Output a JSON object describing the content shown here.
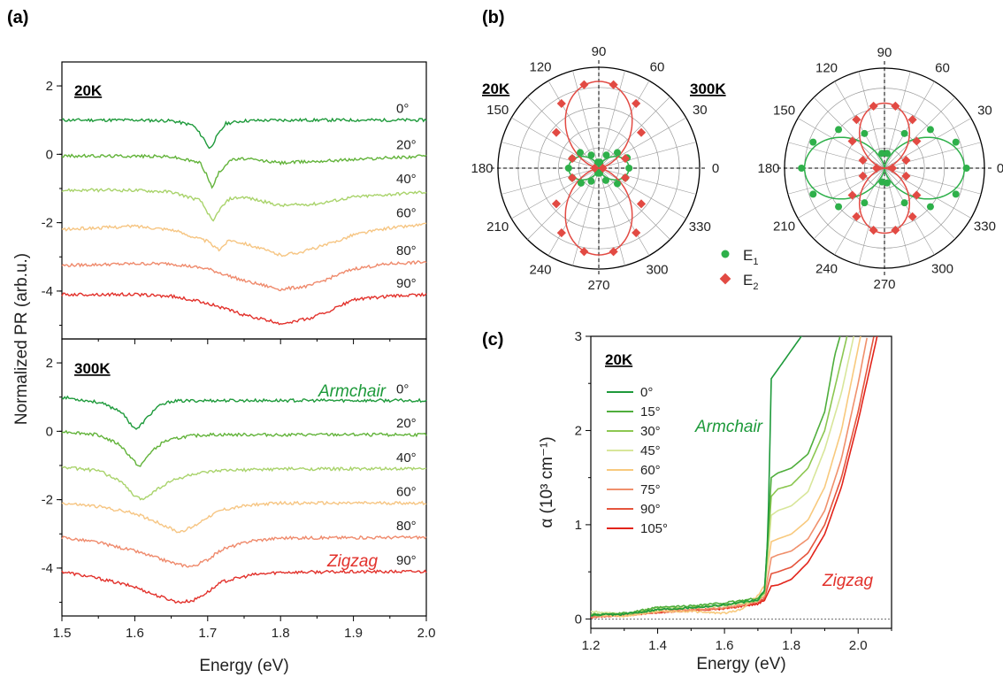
{
  "panels": [
    {
      "id": "a",
      "label": "(a)"
    },
    {
      "id": "b",
      "label": "(b)"
    },
    {
      "id": "c",
      "label": "(c)"
    }
  ],
  "chart_data": [
    {
      "id": "a-top",
      "type": "line",
      "temperature_label": "20K",
      "ylabel": "Normalized PR (arb.u.)",
      "xlabel": "",
      "xlim": [
        1.5,
        2.0
      ],
      "ylim": [
        -5.4,
        2.7
      ],
      "yticks": [
        "2",
        "0",
        "-2",
        "-4"
      ],
      "series": [
        {
          "name": "0°",
          "offset": 1.0,
          "x": [
            1.5,
            1.6,
            1.65,
            1.68,
            1.695,
            1.703,
            1.712,
            1.725,
            1.75,
            1.8,
            1.9,
            2.0
          ],
          "y": [
            0,
            0,
            -0.02,
            -0.15,
            -0.55,
            -0.85,
            -0.5,
            -0.1,
            -0.02,
            0,
            0,
            0
          ],
          "color": "#1e9a3b"
        },
        {
          "name": "20°",
          "offset": -0.05,
          "x": [
            1.5,
            1.6,
            1.65,
            1.69,
            1.7,
            1.706,
            1.715,
            1.73,
            1.75,
            1.8,
            1.9,
            2.0
          ],
          "y": [
            0,
            0,
            -0.02,
            -0.2,
            -0.6,
            -0.95,
            -0.5,
            -0.12,
            -0.08,
            -0.2,
            -0.1,
            0
          ],
          "color": "#62b33a"
        },
        {
          "name": "40°",
          "offset": -1.05,
          "x": [
            1.5,
            1.6,
            1.65,
            1.69,
            1.7,
            1.707,
            1.715,
            1.73,
            1.75,
            1.8,
            1.85,
            1.9,
            2.0
          ],
          "y": [
            0,
            0,
            -0.05,
            -0.3,
            -0.65,
            -0.95,
            -0.6,
            -0.25,
            -0.2,
            -0.45,
            -0.4,
            -0.2,
            -0.05
          ],
          "color": "#a9d36b"
        },
        {
          "name": "60°",
          "offset": -2.05,
          "x": [
            1.5,
            1.55,
            1.6,
            1.65,
            1.7,
            1.715,
            1.73,
            1.75,
            1.8,
            1.83,
            1.87,
            1.9,
            1.95,
            2.0
          ],
          "y": [
            -0.15,
            -0.1,
            -0.05,
            -0.15,
            -0.5,
            -0.75,
            -0.45,
            -0.55,
            -0.9,
            -0.8,
            -0.55,
            -0.3,
            -0.1,
            0
          ],
          "color": "#f6c582"
        },
        {
          "name": "80°",
          "offset": -3.15,
          "x": [
            1.5,
            1.6,
            1.65,
            1.7,
            1.75,
            1.8,
            1.84,
            1.87,
            1.9,
            1.95,
            2.0
          ],
          "y": [
            -0.1,
            -0.05,
            -0.05,
            -0.2,
            -0.55,
            -0.8,
            -0.7,
            -0.45,
            -0.2,
            -0.05,
            0
          ],
          "color": "#ef8a6c"
        },
        {
          "name": "90°",
          "offset": -4.1,
          "x": [
            1.5,
            1.6,
            1.65,
            1.7,
            1.75,
            1.8,
            1.84,
            1.87,
            1.9,
            1.95,
            2.0
          ],
          "y": [
            0,
            0,
            -0.05,
            -0.25,
            -0.6,
            -0.85,
            -0.7,
            -0.45,
            -0.15,
            -0.05,
            0
          ],
          "color": "#e2312b"
        }
      ]
    },
    {
      "id": "a-bottom",
      "type": "line",
      "temperature_label": "300K",
      "xlabel": "Energy (eV)",
      "xlim": [
        1.5,
        2.0
      ],
      "ylim": [
        -5.4,
        2.7
      ],
      "xticks": [
        "1.5",
        "1.6",
        "1.7",
        "1.8",
        "1.9",
        "2.0"
      ],
      "yticks": [
        "2",
        "0",
        "-2",
        "-4"
      ],
      "annotations": [
        {
          "text": "Armchair",
          "color": "#1e9a3b"
        },
        {
          "text": "Zigzag",
          "color": "#e2312b"
        }
      ],
      "series": [
        {
          "name": "0°",
          "offset": 0.9,
          "x": [
            1.5,
            1.55,
            1.58,
            1.595,
            1.603,
            1.615,
            1.63,
            1.65,
            1.7,
            2.0
          ],
          "y": [
            0.1,
            -0.05,
            -0.3,
            -0.7,
            -0.85,
            -0.55,
            -0.2,
            -0.02,
            0,
            0
          ],
          "color": "#1e9a3b"
        },
        {
          "name": "20°",
          "offset": -0.1,
          "x": [
            1.5,
            1.55,
            1.58,
            1.6,
            1.607,
            1.62,
            1.64,
            1.67,
            1.7,
            2.0
          ],
          "y": [
            0.1,
            0,
            -0.3,
            -0.8,
            -0.95,
            -0.55,
            -0.2,
            -0.05,
            0,
            0
          ],
          "color": "#62b33a"
        },
        {
          "name": "40°",
          "offset": -1.1,
          "x": [
            1.5,
            1.55,
            1.58,
            1.6,
            1.61,
            1.63,
            1.65,
            1.68,
            1.72,
            1.8,
            2.0
          ],
          "y": [
            0.05,
            -0.05,
            -0.35,
            -0.8,
            -0.9,
            -0.6,
            -0.35,
            -0.15,
            -0.05,
            0,
            0
          ],
          "color": "#a9d36b"
        },
        {
          "name": "60°",
          "offset": -2.1,
          "x": [
            1.5,
            1.55,
            1.6,
            1.63,
            1.66,
            1.68,
            1.7,
            1.72,
            1.76,
            1.8,
            2.0
          ],
          "y": [
            0,
            -0.1,
            -0.3,
            -0.55,
            -0.85,
            -0.7,
            -0.4,
            -0.2,
            -0.05,
            0,
            0
          ],
          "color": "#f6c582"
        },
        {
          "name": "80°",
          "offset": -3.1,
          "x": [
            1.5,
            1.55,
            1.6,
            1.63,
            1.66,
            1.68,
            1.7,
            1.72,
            1.76,
            1.8,
            2.0
          ],
          "y": [
            0,
            -0.15,
            -0.4,
            -0.6,
            -0.8,
            -0.85,
            -0.65,
            -0.35,
            -0.1,
            -0.02,
            0
          ],
          "color": "#ef8a6c"
        },
        {
          "name": "90°",
          "offset": -4.1,
          "x": [
            1.5,
            1.55,
            1.6,
            1.63,
            1.66,
            1.68,
            1.7,
            1.72,
            1.76,
            1.8,
            2.0
          ],
          "y": [
            0,
            -0.2,
            -0.45,
            -0.7,
            -0.9,
            -0.85,
            -0.6,
            -0.3,
            -0.1,
            -0.02,
            0
          ],
          "color": "#e2312b"
        }
      ]
    },
    {
      "id": "b-20K",
      "type": "scatter",
      "polar": true,
      "temperature_label": "20K",
      "angle_labels": [
        "90",
        "60",
        "30",
        "0",
        "330",
        "300",
        "270",
        "240",
        "210",
        "180",
        "150",
        "120"
      ],
      "rlim": [
        0,
        1
      ],
      "series": [
        {
          "name": "E1",
          "color": "#2eb04a",
          "amplitude": 0.3,
          "orientation": 0,
          "points_theta": [
            0,
            20,
            40,
            60,
            80,
            100,
            120,
            140,
            160,
            180,
            200,
            220,
            240,
            260,
            280,
            300,
            320,
            340
          ],
          "points_r": [
            0.3,
            0.3,
            0.24,
            0.15,
            0.06,
            0.06,
            0.15,
            0.24,
            0.28,
            0.3,
            0.28,
            0.23,
            0.15,
            0.05,
            0.05,
            0.14,
            0.24,
            0.28
          ]
        },
        {
          "name": "E2",
          "color": "#e24a43",
          "amplitude": 0.86,
          "orientation": 90,
          "points_theta": [
            0,
            20,
            40,
            60,
            80,
            100,
            120,
            140,
            160,
            180,
            200,
            220,
            240,
            260,
            280,
            300,
            320,
            340
          ],
          "points_r": [
            0.04,
            0.28,
            0.55,
            0.74,
            0.84,
            0.84,
            0.74,
            0.55,
            0.28,
            0.04,
            0.28,
            0.55,
            0.74,
            0.84,
            0.84,
            0.74,
            0.55,
            0.28
          ]
        }
      ]
    },
    {
      "id": "b-300K",
      "type": "scatter",
      "polar": true,
      "temperature_label": "300K",
      "angle_labels": [
        "90",
        "60",
        "30",
        "0",
        "330",
        "300",
        "270",
        "240",
        "210",
        "180",
        "150",
        "120"
      ],
      "rlim": [
        0,
        1
      ],
      "legend": [
        {
          "label": "E",
          "sub": "1",
          "color": "#2eb04a",
          "marker": "circle"
        },
        {
          "label": "E",
          "sub": "2",
          "color": "#e24a43",
          "marker": "diamond"
        }
      ],
      "series": [
        {
          "name": "E1",
          "color": "#2eb04a",
          "amplitude": 0.8,
          "orientation": 0,
          "points_theta": [
            0,
            20,
            40,
            60,
            80,
            100,
            120,
            140,
            160,
            180,
            200,
            220,
            240,
            260,
            280,
            300,
            320,
            340
          ],
          "points_r": [
            0.82,
            0.76,
            0.6,
            0.4,
            0.15,
            0.15,
            0.4,
            0.6,
            0.76,
            0.83,
            0.76,
            0.6,
            0.4,
            0.14,
            0.15,
            0.4,
            0.6,
            0.76
          ]
        },
        {
          "name": "E2",
          "color": "#e24a43",
          "amplitude": 0.65,
          "orientation": 90,
          "points_theta": [
            0,
            20,
            40,
            60,
            80,
            100,
            120,
            140,
            160,
            180,
            200,
            220,
            240,
            260,
            280,
            300,
            320,
            340
          ],
          "points_r": [
            0.08,
            0.23,
            0.42,
            0.56,
            0.63,
            0.63,
            0.56,
            0.42,
            0.23,
            0.08,
            0.23,
            0.42,
            0.56,
            0.63,
            0.63,
            0.56,
            0.42,
            0.23
          ]
        }
      ]
    },
    {
      "id": "c",
      "type": "line",
      "temperature_label": "20K",
      "xlabel": "Energy (eV)",
      "ylabel": "α (10³ cm⁻¹)",
      "xlim": [
        1.2,
        2.1
      ],
      "ylim": [
        -0.1,
        3
      ],
      "xticks": [
        "1.2",
        "1.4",
        "1.6",
        "1.8",
        "2.0"
      ],
      "yticks": [
        "0",
        "1",
        "2",
        "3"
      ],
      "annotations": [
        {
          "text": "Armchair",
          "color": "#1e9a3b"
        },
        {
          "text": "Zigzag",
          "color": "#e2312b"
        }
      ],
      "series": [
        {
          "name": "0°",
          "color": "#1e9a3b",
          "x": [
            1.2,
            1.3,
            1.4,
            1.5,
            1.6,
            1.7,
            1.72,
            1.73,
            1.74,
            1.76,
            1.8,
            1.83,
            1.85
          ],
          "y": [
            0.04,
            0.05,
            0.1,
            0.12,
            0.15,
            0.2,
            0.3,
            0.9,
            2.55,
            2.65,
            2.85,
            3.0,
            3.05
          ]
        },
        {
          "name": "15°",
          "color": "#4fae3c",
          "x": [
            1.2,
            1.3,
            1.4,
            1.5,
            1.6,
            1.7,
            1.72,
            1.74,
            1.76,
            1.8,
            1.85,
            1.9,
            1.93,
            1.95
          ],
          "y": [
            0.04,
            0.06,
            0.12,
            0.14,
            0.17,
            0.22,
            0.3,
            1.5,
            1.55,
            1.6,
            1.75,
            2.2,
            2.8,
            3.05
          ]
        },
        {
          "name": "30°",
          "color": "#8cc751",
          "x": [
            1.2,
            1.3,
            1.4,
            1.5,
            1.6,
            1.7,
            1.72,
            1.74,
            1.76,
            1.8,
            1.85,
            1.9,
            1.94,
            1.97
          ],
          "y": [
            0.05,
            0.05,
            0.1,
            0.12,
            0.15,
            0.2,
            0.28,
            1.3,
            1.38,
            1.42,
            1.6,
            2.0,
            2.6,
            3.05
          ]
        },
        {
          "name": "45°",
          "color": "#d8e69a",
          "x": [
            1.2,
            1.3,
            1.4,
            1.5,
            1.6,
            1.7,
            1.72,
            1.74,
            1.76,
            1.8,
            1.85,
            1.9,
            1.95,
            1.99
          ],
          "y": [
            0.08,
            0.05,
            0.12,
            0.12,
            0.14,
            0.19,
            0.26,
            1.1,
            1.15,
            1.2,
            1.35,
            1.8,
            2.4,
            3.05
          ]
        },
        {
          "name": "60°",
          "color": "#f8c97d",
          "x": [
            1.2,
            1.3,
            1.4,
            1.5,
            1.6,
            1.65,
            1.7,
            1.72,
            1.74,
            1.76,
            1.8,
            1.85,
            1.9,
            1.95,
            2.01
          ],
          "y": [
            0.04,
            0.03,
            0.08,
            0.08,
            0.06,
            0.1,
            0.25,
            0.35,
            0.82,
            0.85,
            0.9,
            1.05,
            1.4,
            2.0,
            3.05
          ]
        },
        {
          "name": "75°",
          "color": "#f0906c",
          "x": [
            1.2,
            1.3,
            1.4,
            1.5,
            1.6,
            1.7,
            1.72,
            1.74,
            1.76,
            1.8,
            1.85,
            1.9,
            1.95,
            2.0,
            2.03
          ],
          "y": [
            0.02,
            0.04,
            0.08,
            0.1,
            0.12,
            0.18,
            0.25,
            0.65,
            0.68,
            0.72,
            0.85,
            1.15,
            1.7,
            2.5,
            3.05
          ]
        },
        {
          "name": "90°",
          "color": "#e5553d",
          "x": [
            1.2,
            1.3,
            1.4,
            1.5,
            1.6,
            1.7,
            1.72,
            1.74,
            1.76,
            1.8,
            1.85,
            1.9,
            1.95,
            2.0,
            2.05
          ],
          "y": [
            0.02,
            0.04,
            0.07,
            0.09,
            0.11,
            0.17,
            0.22,
            0.48,
            0.5,
            0.55,
            0.7,
            1.0,
            1.5,
            2.2,
            3.05
          ]
        },
        {
          "name": "105°",
          "color": "#e2231a",
          "x": [
            1.2,
            1.3,
            1.4,
            1.5,
            1.6,
            1.7,
            1.72,
            1.74,
            1.76,
            1.8,
            1.85,
            1.9,
            1.95,
            2.0,
            2.06
          ],
          "y": [
            0.02,
            0.04,
            0.07,
            0.09,
            0.11,
            0.16,
            0.2,
            0.35,
            0.36,
            0.42,
            0.6,
            0.9,
            1.4,
            2.1,
            3.05
          ]
        }
      ]
    }
  ]
}
